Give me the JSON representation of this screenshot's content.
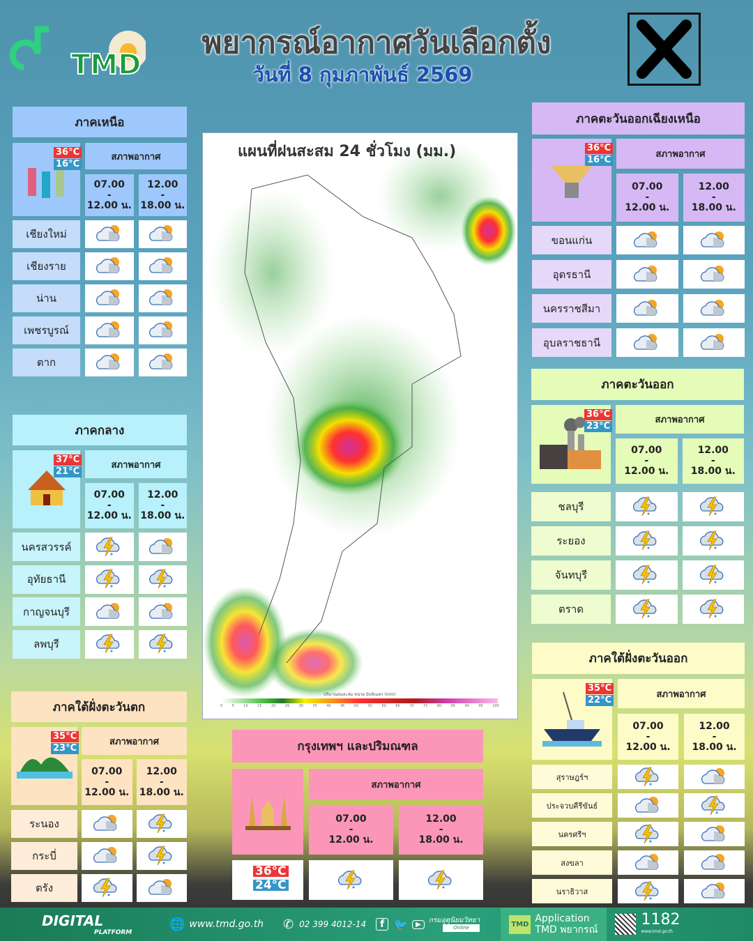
{
  "header": {
    "title": "พยากรณ์อากาศวันเลือกตั้ง",
    "date": "วันที่ 8 กุมภาพันธ์ 2569",
    "logo_text": "TMD",
    "ballot_mark": "X"
  },
  "map": {
    "title": "แผนที่ฝนสะสม 24 ชั่วโมง (มม.)",
    "legend_label": "ปริมาณฝนสะสม หน่วย มิลลิเมตร (mm)",
    "legend_ticks": [
      "0",
      "5",
      "10",
      "15",
      "20",
      "25",
      "30",
      "35",
      "40",
      "45",
      "50",
      "55",
      "60",
      "65",
      "70",
      "75",
      "80",
      "85",
      "90",
      "95",
      "100"
    ],
    "colors": [
      "#ffffff",
      "#4cc040",
      "#1e7a28",
      "#f5f000",
      "#ff3030",
      "#b01818",
      "#d040b0",
      "#ffb8e8"
    ]
  },
  "labels": {
    "status": "สภาพอากาศ",
    "slot1": [
      "07.00",
      "-",
      "12.00 น."
    ],
    "slot2": [
      "12.00",
      "-",
      "18.00 น."
    ]
  },
  "regions": [
    {
      "id": "north",
      "title": "ภาคเหนือ",
      "color": "#9ec8fb",
      "row_color": "#c6dcfb",
      "temp_high": "36°C",
      "temp_low": "16°C",
      "image": "lanna-lanterns",
      "rows": [
        {
          "province": "เชียงใหม่",
          "morning": "partly-cloudy",
          "afternoon": "partly-cloudy"
        },
        {
          "province": "เชียงราย",
          "morning": "partly-cloudy",
          "afternoon": "partly-cloudy"
        },
        {
          "province": "น่าน",
          "morning": "partly-cloudy",
          "afternoon": "partly-cloudy"
        },
        {
          "province": "เพชรบูรณ์",
          "morning": "partly-cloudy",
          "afternoon": "partly-cloudy"
        },
        {
          "province": "ตาก",
          "morning": "partly-cloudy",
          "afternoon": "partly-cloudy"
        }
      ]
    },
    {
      "id": "central",
      "title": "ภาคกลาง",
      "color": "#b8f0fb",
      "row_color": "#c8f4fb",
      "temp_high": "37°C",
      "temp_low": "21°C",
      "image": "thai-temple",
      "rows": [
        {
          "province": "นครสวรรค์",
          "morning": "thunderstorm",
          "afternoon": "partly-cloudy"
        },
        {
          "province": "อุทัยธานี",
          "morning": "thunderstorm",
          "afternoon": "thunderstorm"
        },
        {
          "province": "กาญจนบุรี",
          "morning": "partly-cloudy",
          "afternoon": "partly-cloudy"
        },
        {
          "province": "ลพบุรี",
          "morning": "thunderstorm",
          "afternoon": "thunderstorm"
        }
      ]
    },
    {
      "id": "southwest",
      "title": "ภาคใต้ฝั่งตะวันตก",
      "color": "#fde3c2",
      "row_color": "#fdecd8",
      "temp_high": "35°C",
      "temp_low": "23°C",
      "image": "island",
      "rows": [
        {
          "province": "ระนอง",
          "morning": "partly-cloudy",
          "afternoon": "thunderstorm"
        },
        {
          "province": "กระบี่",
          "morning": "partly-cloudy",
          "afternoon": "thunderstorm"
        },
        {
          "province": "ตรัง",
          "morning": "thunderstorm",
          "afternoon": "partly-cloudy"
        }
      ]
    },
    {
      "id": "northeast",
      "title": "ภาคตะวันออกเฉียงเหนือ",
      "color": "#d6b8f5",
      "row_color": "#e6d8f8",
      "temp_high": "36°C",
      "temp_low": "16°C",
      "image": "sticky-rice-basket",
      "rows": [
        {
          "province": "ขอนแก่น",
          "morning": "partly-cloudy",
          "afternoon": "partly-cloudy"
        },
        {
          "province": "อุดรธานี",
          "morning": "partly-cloudy",
          "afternoon": "partly-cloudy"
        },
        {
          "province": "นครราชสีมา",
          "morning": "partly-cloudy",
          "afternoon": "partly-cloudy"
        },
        {
          "province": "อุบลราชธานี",
          "morning": "partly-cloudy",
          "afternoon": "partly-cloudy"
        }
      ]
    },
    {
      "id": "east",
      "title": "ภาคตะวันออก",
      "color": "#e5fbb8",
      "row_color": "#eefcd0",
      "temp_high": "36°C",
      "temp_low": "23°C",
      "image": "factory",
      "rows": [
        {
          "province": "ชลบุรี",
          "morning": "thunderstorm",
          "afternoon": "thunderstorm"
        },
        {
          "province": "ระยอง",
          "morning": "thunderstorm",
          "afternoon": "thunderstorm"
        },
        {
          "province": "จันทบุรี",
          "morning": "thunderstorm",
          "afternoon": "thunderstorm"
        },
        {
          "province": "ตราด",
          "morning": "thunderstorm",
          "afternoon": "thunderstorm"
        }
      ]
    },
    {
      "id": "southeast",
      "title": "ภาคใต้ฝั่งตะวันออก",
      "color": "#fdfbc8",
      "row_color": "#fdfbd8",
      "temp_high": "35°C",
      "temp_low": "22°C",
      "image": "fishing-boat",
      "rows": [
        {
          "province": "สุราษฎร์ฯ",
          "morning": "thunderstorm",
          "afternoon": "partly-cloudy"
        },
        {
          "province": "ประจวบคีรีขันธ์",
          "morning": "partly-cloudy",
          "afternoon": "thunderstorm"
        },
        {
          "province": "นครศรีฯ",
          "morning": "thunderstorm",
          "afternoon": "partly-cloudy"
        },
        {
          "province": "สงขลา",
          "morning": "partly-cloudy",
          "afternoon": "partly-cloudy"
        },
        {
          "province": "นราธิวาส",
          "morning": "thunderstorm",
          "afternoon": "partly-cloudy"
        }
      ]
    },
    {
      "id": "bangkok",
      "title": "กรุงเทพฯ และปริมณฑล",
      "color": "#fb96b8",
      "row_color": "#fb96b8",
      "temp_high": "36°C",
      "temp_low": "24°C",
      "image": "democracy-monument",
      "rows": [
        {
          "province": "",
          "morning": "thunderstorm",
          "afternoon": "thunderstorm"
        }
      ]
    }
  ],
  "footer": {
    "platform": "DIGITAL",
    "platform_sub": "PLATFORM",
    "website": "www.tmd.go.th",
    "phone": "02 399 4012-14",
    "social_name": "กรมอุตุนิยมวิทยา",
    "social_sub": "Online",
    "app_line1": "Application",
    "app_line2": "TMD พยากรณ์",
    "hotline": "1182",
    "hotline_sub": "www.tmd.go.th"
  }
}
